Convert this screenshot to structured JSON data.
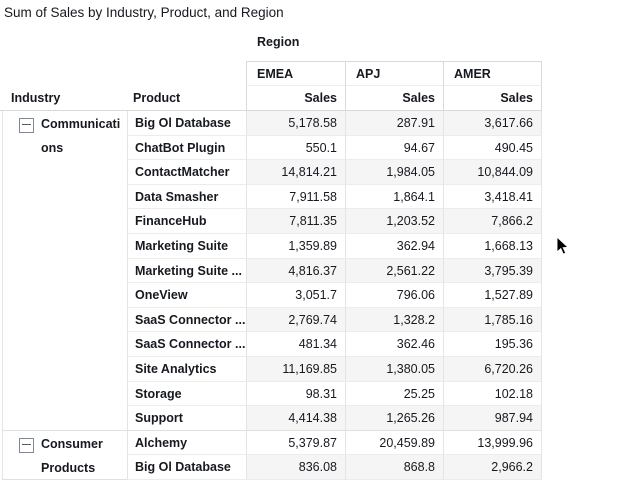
{
  "title": "Sum of Sales by Industry, Product, and Region",
  "pivot": {
    "column_dimension_label": "Region",
    "row_dimension_labels": [
      "Industry",
      "Product"
    ],
    "columns": [
      "EMEA",
      "APJ",
      "AMER"
    ],
    "measure_label": "Sales",
    "groups": [
      {
        "industry": "Communications",
        "collapse_icon": "minus-box-icon",
        "rows": [
          {
            "product": "Big Ol Database",
            "values": [
              "5,178.58",
              "287.91",
              "3,617.66"
            ]
          },
          {
            "product": "ChatBot Plugin",
            "values": [
              "550.1",
              "94.67",
              "490.45"
            ]
          },
          {
            "product": "ContactMatcher",
            "values": [
              "14,814.21",
              "1,984.05",
              "10,844.09"
            ]
          },
          {
            "product": "Data Smasher",
            "values": [
              "7,911.58",
              "1,864.1",
              "3,418.41"
            ]
          },
          {
            "product": "FinanceHub",
            "values": [
              "7,811.35",
              "1,203.52",
              "7,866.2"
            ]
          },
          {
            "product": "Marketing Suite",
            "values": [
              "1,359.89",
              "362.94",
              "1,668.13"
            ]
          },
          {
            "product": "Marketing Suite ...",
            "values": [
              "4,816.37",
              "2,561.22",
              "3,795.39"
            ]
          },
          {
            "product": "OneView",
            "values": [
              "3,051.7",
              "796.06",
              "1,527.89"
            ]
          },
          {
            "product": "SaaS Connector ...",
            "values": [
              "2,769.74",
              "1,328.2",
              "1,785.16"
            ]
          },
          {
            "product": "SaaS Connector ...",
            "values": [
              "481.34",
              "362.46",
              "195.36"
            ]
          },
          {
            "product": "Site Analytics",
            "values": [
              "11,169.85",
              "1,380.05",
              "6,720.26"
            ]
          },
          {
            "product": "Storage",
            "values": [
              "98.31",
              "25.25",
              "102.18"
            ]
          },
          {
            "product": "Support",
            "values": [
              "4,414.38",
              "1,265.26",
              "987.94"
            ]
          }
        ]
      },
      {
        "industry": "Consumer Products",
        "collapse_icon": "minus-box-icon",
        "rows": [
          {
            "product": "Alchemy",
            "values": [
              "5,379.87",
              "20,459.89",
              "13,999.96"
            ]
          },
          {
            "product": "Big Ol Database",
            "values": [
              "836.08",
              "868.8",
              "2,966.2"
            ]
          }
        ]
      }
    ]
  },
  "colors": {
    "text": "#16191f",
    "zebra_row": "#f5f5f5",
    "grid_line": "#ececec",
    "header_border": "#d9d9d9",
    "background": "#ffffff"
  }
}
